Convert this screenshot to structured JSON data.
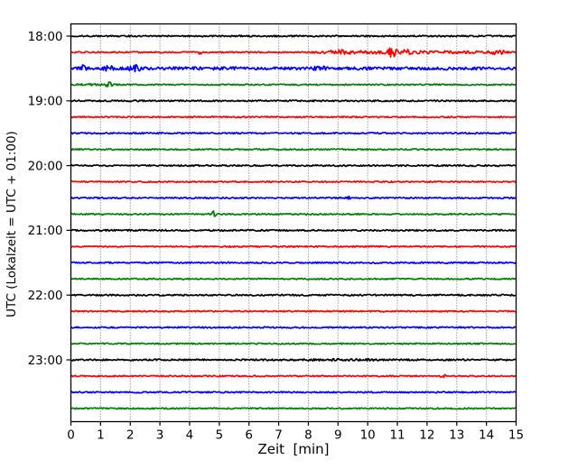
{
  "chart_data": {
    "type": "line",
    "subtype": "seismogram-dayplot-helicorder",
    "title": "",
    "xlabel": "Zeit  [min]",
    "ylabel": "UTC (Lokalzeit = UTC + 01:00)",
    "x_ticks": [
      "0",
      "1",
      "2",
      "3",
      "4",
      "5",
      "6",
      "7",
      "8",
      "9",
      "10",
      "11",
      "12",
      "13",
      "14",
      "15"
    ],
    "x_range": [
      0,
      15
    ],
    "minutes_per_trace": 15,
    "traces_per_hour": 4,
    "y_hour_labels": [
      "18:00",
      "19:00",
      "20:00",
      "21:00",
      "22:00",
      "23:00"
    ],
    "grid": {
      "vertical": true,
      "horizontal": false,
      "style": "dotted",
      "color": "#666666"
    },
    "frame_color": "#000000",
    "trace_color_cycle": [
      "#000000",
      "#ff0000",
      "#0000ff",
      "#008000"
    ],
    "traces": [
      {
        "start": "18:00",
        "color_name": "black",
        "color": "#000000",
        "noise": 0.85,
        "events": []
      },
      {
        "start": "18:15",
        "color_name": "red",
        "color": "#ff0000",
        "noise": 0.75,
        "events": [
          {
            "t": 4.35,
            "w": 0.05,
            "a": 2.2
          },
          {
            "t": 9.05,
            "w": 0.3,
            "a": 1.6
          },
          {
            "t": 10.1,
            "w": 1.0,
            "a": 1.1
          },
          {
            "t": 10.82,
            "w": 0.09,
            "a": 5.0
          },
          {
            "t": 11.35,
            "w": 0.12,
            "a": 2.0
          },
          {
            "t": 12.9,
            "w": 1.3,
            "a": 0.9
          },
          {
            "t": 14.4,
            "w": 0.15,
            "a": 2.2
          }
        ]
      },
      {
        "start": "18:30",
        "color_name": "blue",
        "color": "#0000ff",
        "noise": 1.25,
        "events": [
          {
            "t": 0.42,
            "w": 0.09,
            "a": 3.2
          },
          {
            "t": 1.28,
            "w": 0.1,
            "a": 3.0
          },
          {
            "t": 2.15,
            "w": 0.13,
            "a": 2.7
          },
          {
            "t": 4.0,
            "w": 2.5,
            "a": 0.5
          },
          {
            "t": 8.4,
            "w": 0.2,
            "a": 1.3
          },
          {
            "t": 11.5,
            "w": 2.5,
            "a": 0.4
          }
        ]
      },
      {
        "start": "18:45",
        "color_name": "green",
        "color": "#008000",
        "noise": 0.75,
        "events": [
          {
            "t": 1.27,
            "w": 0.08,
            "a": 3.4
          },
          {
            "t": 0.6,
            "w": 0.5,
            "a": 0.5
          }
        ]
      },
      {
        "start": "19:00",
        "color_name": "black",
        "color": "#000000",
        "noise": 0.85,
        "events": []
      },
      {
        "start": "19:15",
        "color_name": "red",
        "color": "#ff0000",
        "noise": 0.75,
        "events": []
      },
      {
        "start": "19:30",
        "color_name": "blue",
        "color": "#0000ff",
        "noise": 0.8,
        "events": []
      },
      {
        "start": "19:45",
        "color_name": "green",
        "color": "#008000",
        "noise": 0.75,
        "events": []
      },
      {
        "start": "20:00",
        "color_name": "black",
        "color": "#000000",
        "noise": 0.85,
        "events": []
      },
      {
        "start": "20:15",
        "color_name": "red",
        "color": "#ff0000",
        "noise": 0.75,
        "events": []
      },
      {
        "start": "20:30",
        "color_name": "blue",
        "color": "#0000ff",
        "noise": 0.8,
        "events": [
          {
            "t": 9.35,
            "w": 0.04,
            "a": 1.8
          }
        ]
      },
      {
        "start": "20:45",
        "color_name": "green",
        "color": "#008000",
        "noise": 0.75,
        "events": [
          {
            "t": 4.82,
            "w": 0.05,
            "a": 4.5
          }
        ]
      },
      {
        "start": "21:00",
        "color_name": "black",
        "color": "#000000",
        "noise": 0.85,
        "events": []
      },
      {
        "start": "21:15",
        "color_name": "red",
        "color": "#ff0000",
        "noise": 0.75,
        "events": []
      },
      {
        "start": "21:30",
        "color_name": "blue",
        "color": "#0000ff",
        "noise": 0.8,
        "events": []
      },
      {
        "start": "21:45",
        "color_name": "green",
        "color": "#008000",
        "noise": 0.75,
        "events": []
      },
      {
        "start": "22:00",
        "color_name": "black",
        "color": "#000000",
        "noise": 0.85,
        "events": []
      },
      {
        "start": "22:15",
        "color_name": "red",
        "color": "#ff0000",
        "noise": 0.75,
        "events": []
      },
      {
        "start": "22:30",
        "color_name": "blue",
        "color": "#0000ff",
        "noise": 0.8,
        "events": []
      },
      {
        "start": "22:45",
        "color_name": "green",
        "color": "#008000",
        "noise": 0.75,
        "events": []
      },
      {
        "start": "23:00",
        "color_name": "black",
        "color": "#000000",
        "noise": 0.9,
        "events": [
          {
            "t": 9.2,
            "w": 1.2,
            "a": 0.4
          }
        ]
      },
      {
        "start": "23:15",
        "color_name": "red",
        "color": "#ff0000",
        "noise": 0.75,
        "events": [
          {
            "t": 12.55,
            "w": 0.05,
            "a": 1.8
          }
        ]
      },
      {
        "start": "23:30",
        "color_name": "blue",
        "color": "#0000ff",
        "noise": 0.8,
        "events": []
      },
      {
        "start": "23:45",
        "color_name": "green",
        "color": "#008000",
        "noise": 0.75,
        "events": []
      }
    ]
  }
}
